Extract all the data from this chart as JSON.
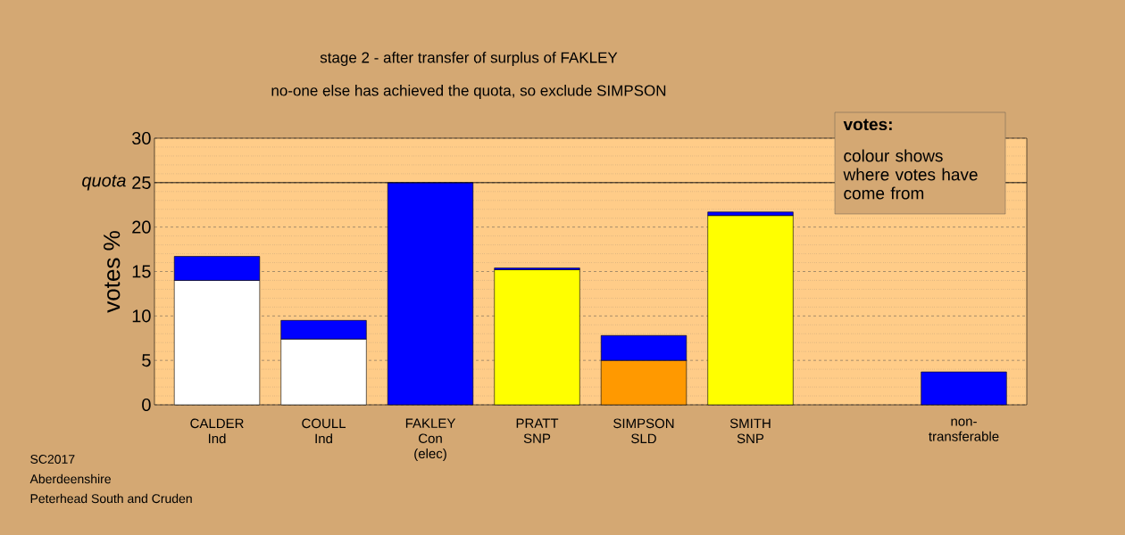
{
  "chart_data": {
    "type": "bar",
    "title": "stage 2 - after transfer of surplus of FAKLEY",
    "subtitle": "no-one else has achieved the quota, so exclude SIMPSON",
    "ylabel": "votes %",
    "categories": [
      "CALDER\nInd",
      "COULL\nInd",
      "FAKLEY\nCon\n(elec)",
      "PRATT\nSNP",
      "SIMPSON\nSLD",
      "SMITH\nSNP",
      null,
      "non-\ntransferable"
    ],
    "stacked": true,
    "series": [
      {
        "values": [
          14.0,
          7.4,
          25,
          15.2,
          5.0,
          21.3,
          null,
          null
        ],
        "colors": [
          "#ffffff",
          "#ffffff",
          "#0000ff",
          "#ffff00",
          "#ff9900",
          "#ffff00",
          null,
          null
        ]
      },
      {
        "color": "#0000ff",
        "values": [
          2.7,
          2.1,
          null,
          0.2,
          2.8,
          0.4,
          null,
          3.7
        ]
      }
    ],
    "ylim": [
      0,
      30
    ],
    "yticks": [
      0,
      5,
      10,
      15,
      20,
      25,
      30
    ],
    "grid": "y",
    "ref_lines": [
      {
        "axis": "y",
        "value": 25,
        "label": "quota",
        "color": "#000000"
      }
    ],
    "annotations": [
      "SC2017",
      "Aberdeenshire",
      "Peterhead South and Cruden",
      "votes:",
      "colour shows where votes have come from"
    ]
  }
}
